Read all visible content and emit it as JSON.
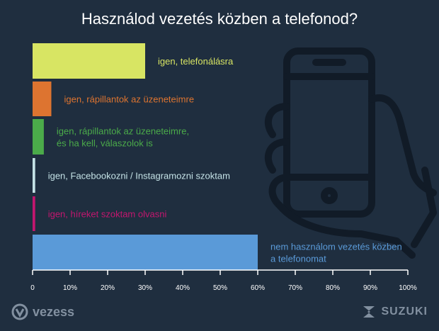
{
  "title": "Használod vezetés közben a telefonod?",
  "brand_left": "vezess",
  "brand_right": "SUZUKI",
  "colors": {
    "background": "#1f2e3f",
    "axis": "#ffffff",
    "watermark": "#111b27"
  },
  "chart_data": {
    "type": "bar",
    "orientation": "horizontal",
    "title": "Használod vezetés közben a telefonod?",
    "xlim": [
      0,
      100
    ],
    "x_ticks": [
      "0",
      "10%",
      "20%",
      "30%",
      "40%",
      "50%",
      "60%",
      "70%",
      "80%",
      "90%",
      "100%"
    ],
    "grid": false,
    "bars": [
      {
        "label_lines": [
          "igen, telefonálásra"
        ],
        "value": 30,
        "color": "#d8e563"
      },
      {
        "label_lines": [
          "igen, rápillantok az üzeneteimre"
        ],
        "value": 5,
        "color": "#dd7430"
      },
      {
        "label_lines": [
          "igen, rápillantok az üzeneteimre,",
          "és ha kell, válaszolok is"
        ],
        "value": 3,
        "color": "#4bab4a"
      },
      {
        "label_lines": [
          "igen, Facebookozni / Instagramozni szoktam"
        ],
        "value": 0.7,
        "color": "#c4e2e6"
      },
      {
        "label_lines": [
          "igen, híreket szoktam olvasni"
        ],
        "value": 0.7,
        "color": "#c4166f"
      },
      {
        "label_lines": [
          "nem használom vezetés közben",
          "a telefonomat"
        ],
        "value": 60,
        "color": "#5a9ad8"
      }
    ]
  }
}
